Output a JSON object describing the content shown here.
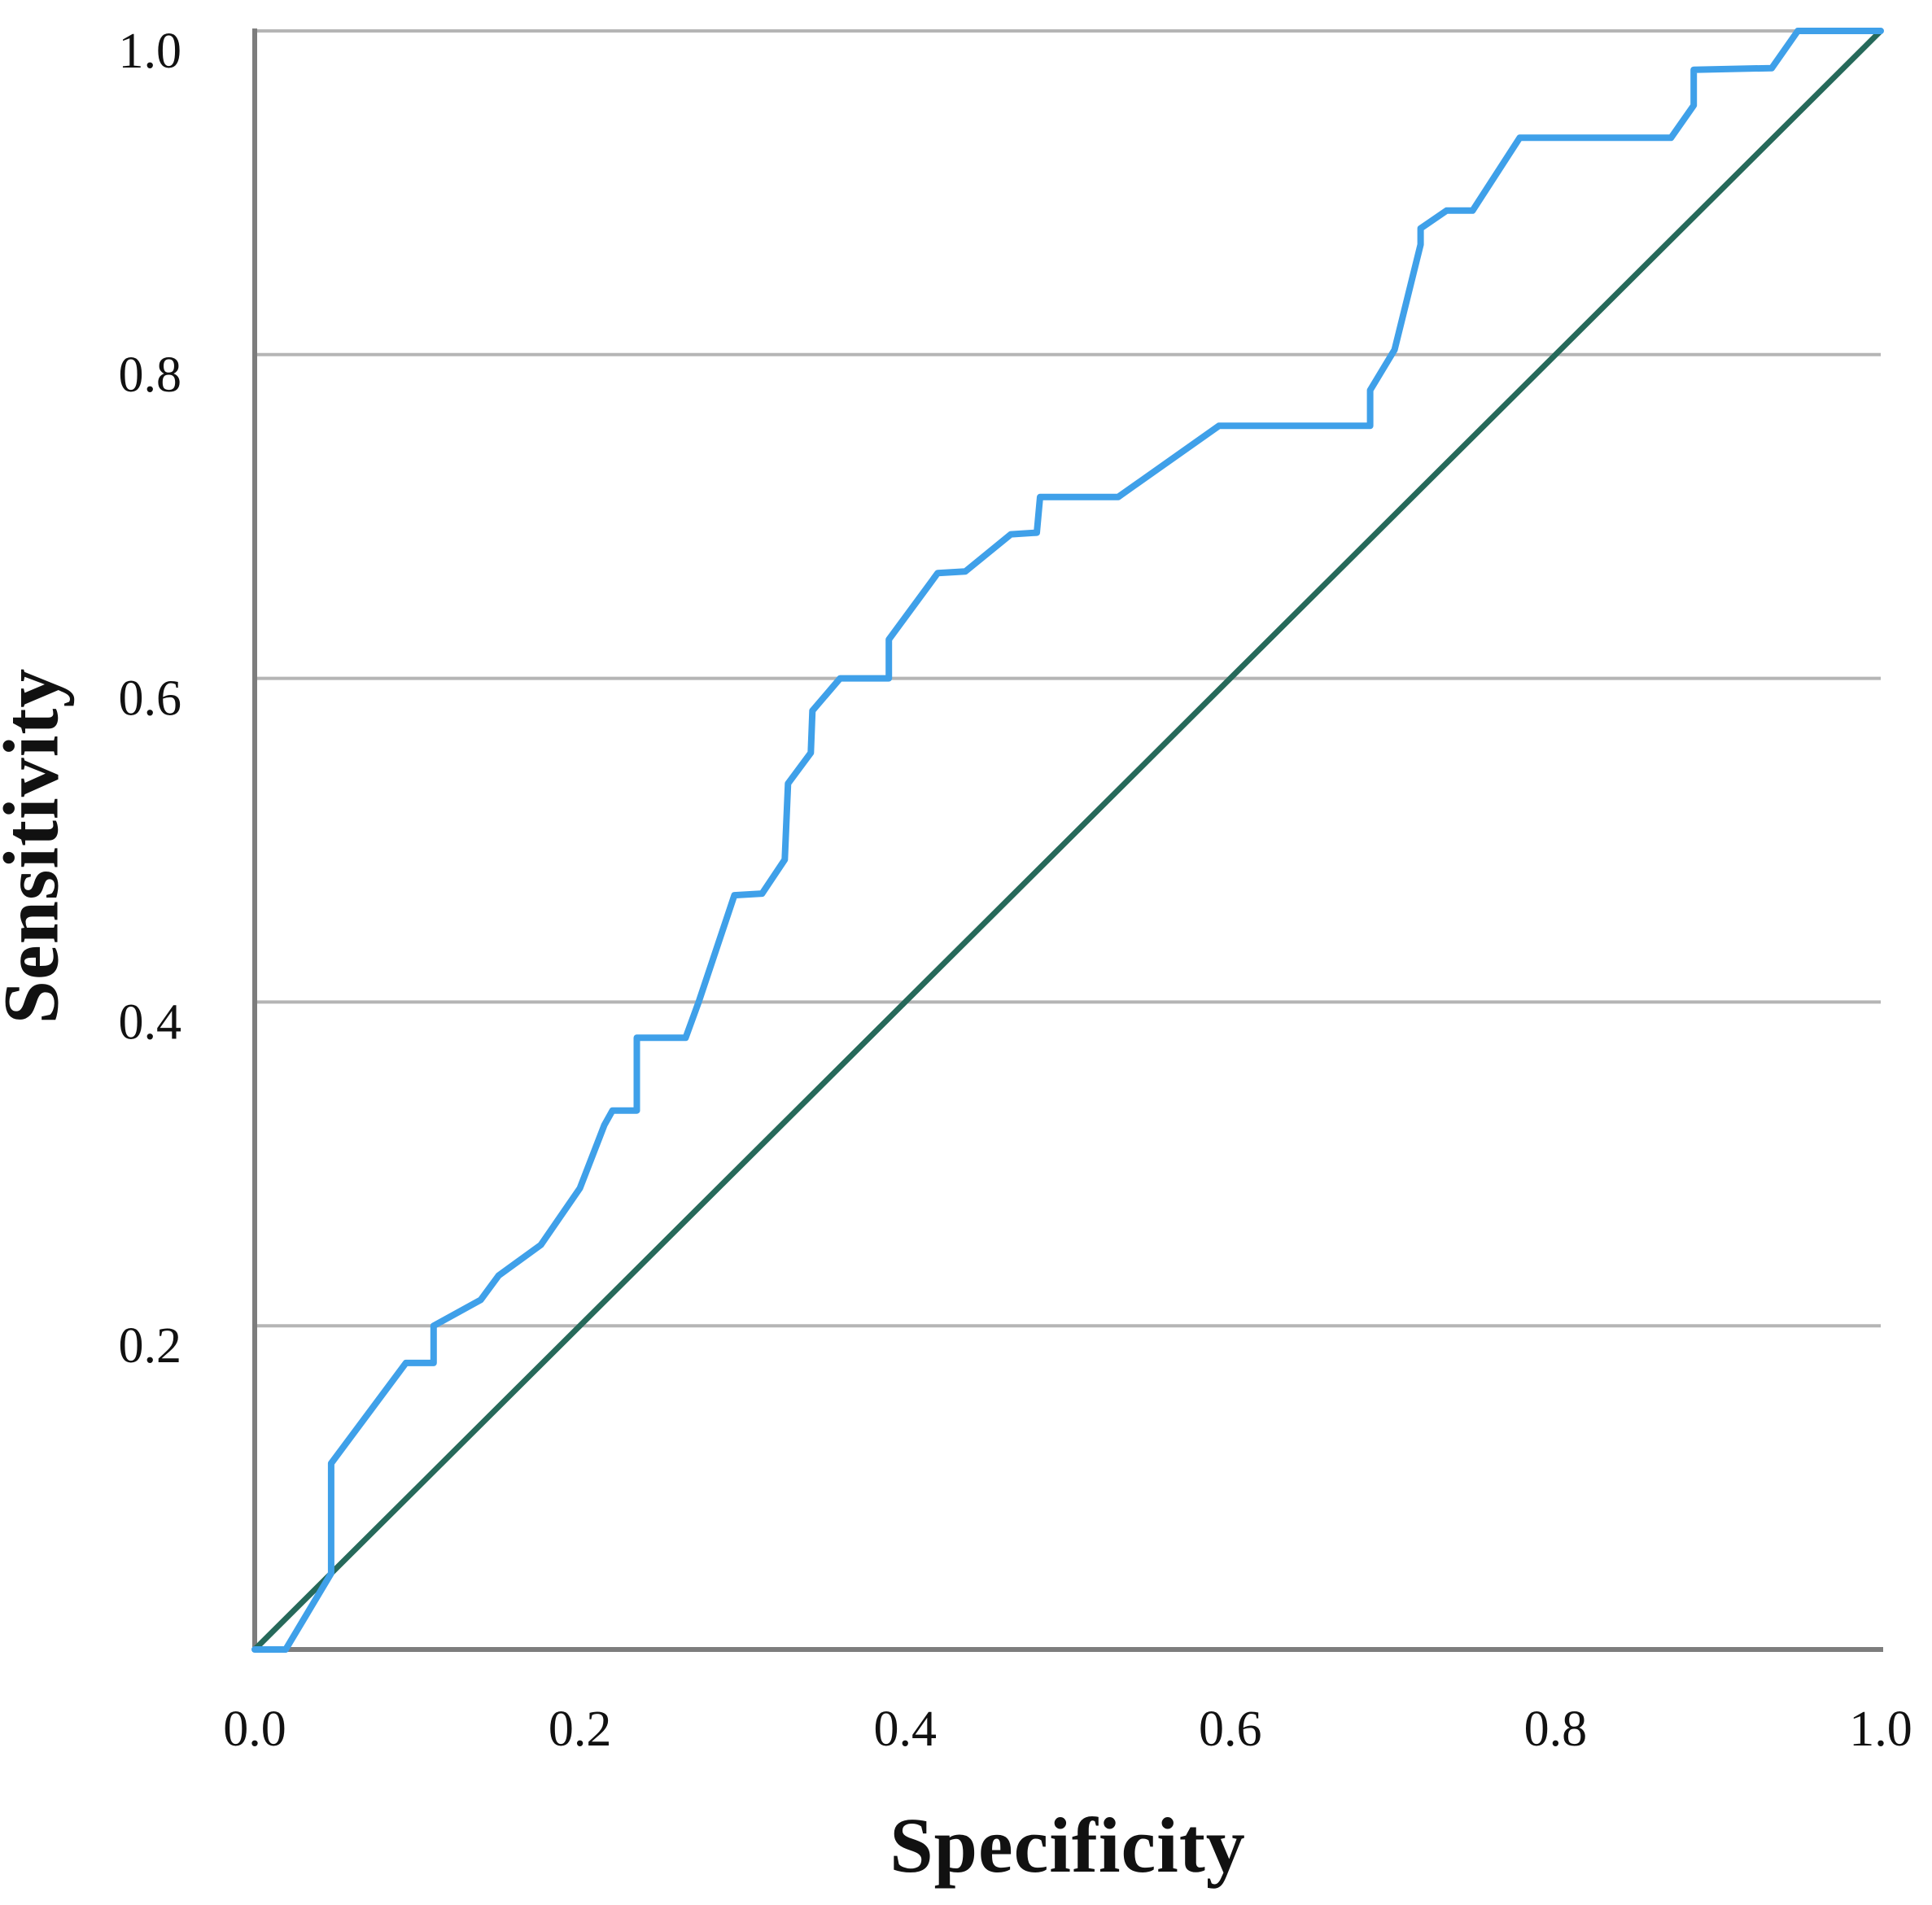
{
  "figure": {
    "background": "#ffffff"
  },
  "chart_data": {
    "type": "line",
    "title": "",
    "xlabel": "Specificity",
    "ylabel": "Sensitivity",
    "xlim": [
      0,
      1
    ],
    "ylim": [
      0,
      1
    ],
    "x_ticks": [
      0.0,
      0.2,
      0.4,
      0.6,
      0.8,
      1.0
    ],
    "x_tick_labels": [
      "0.0",
      "0.2",
      "0.4",
      "0.6",
      "0.8",
      "1.0"
    ],
    "y_ticks": [
      0.2,
      0.4,
      0.6,
      0.8,
      1.0
    ],
    "y_tick_labels": [
      "0.2",
      "0.4",
      "0.6",
      "0.8",
      "1.0"
    ],
    "grid": {
      "horizontal_at": [
        0.2,
        0.4,
        0.6,
        0.8
      ],
      "top_border_at": 1.0,
      "color": "#b5b5b5",
      "width": 4
    },
    "axes": {
      "color": "#7d7d7d",
      "width": 6
    },
    "legend_position": "none",
    "series": [
      {
        "name": "reference-diagonal",
        "color": "#26695a",
        "stroke_width": 7,
        "points": [
          [
            0.0,
            0.0
          ],
          [
            1.0,
            1.0
          ]
        ]
      },
      {
        "name": "roc-curve",
        "color": "#3fa0e9",
        "stroke_width": 8,
        "points": [
          [
            0.0,
            0.0
          ],
          [
            0.019,
            0.0
          ],
          [
            0.047,
            0.047
          ],
          [
            0.047,
            0.115
          ],
          [
            0.093,
            0.177
          ],
          [
            0.11,
            0.177
          ],
          [
            0.11,
            0.2
          ],
          [
            0.139,
            0.216
          ],
          [
            0.15,
            0.231
          ],
          [
            0.176,
            0.25
          ],
          [
            0.2,
            0.285
          ],
          [
            0.215,
            0.324
          ],
          [
            0.22,
            0.333
          ],
          [
            0.235,
            0.333
          ],
          [
            0.235,
            0.378
          ],
          [
            0.265,
            0.378
          ],
          [
            0.273,
            0.4
          ],
          [
            0.295,
            0.466
          ],
          [
            0.312,
            0.467
          ],
          [
            0.326,
            0.488
          ],
          [
            0.328,
            0.535
          ],
          [
            0.342,
            0.554
          ],
          [
            0.343,
            0.58
          ],
          [
            0.36,
            0.6
          ],
          [
            0.39,
            0.6
          ],
          [
            0.39,
            0.624
          ],
          [
            0.42,
            0.665
          ],
          [
            0.437,
            0.666
          ],
          [
            0.465,
            0.689
          ],
          [
            0.481,
            0.69
          ],
          [
            0.483,
            0.712
          ],
          [
            0.531,
            0.712
          ],
          [
            0.593,
            0.756
          ],
          [
            0.686,
            0.756
          ],
          [
            0.686,
            0.778
          ],
          [
            0.701,
            0.803
          ],
          [
            0.717,
            0.868
          ],
          [
            0.717,
            0.878
          ],
          [
            0.733,
            0.889
          ],
          [
            0.749,
            0.889
          ],
          [
            0.778,
            0.934
          ],
          [
            0.871,
            0.934
          ],
          [
            0.885,
            0.954
          ],
          [
            0.885,
            0.976
          ],
          [
            0.933,
            0.977
          ],
          [
            0.949,
            1.0
          ],
          [
            1.0,
            1.0
          ]
        ]
      }
    ]
  }
}
